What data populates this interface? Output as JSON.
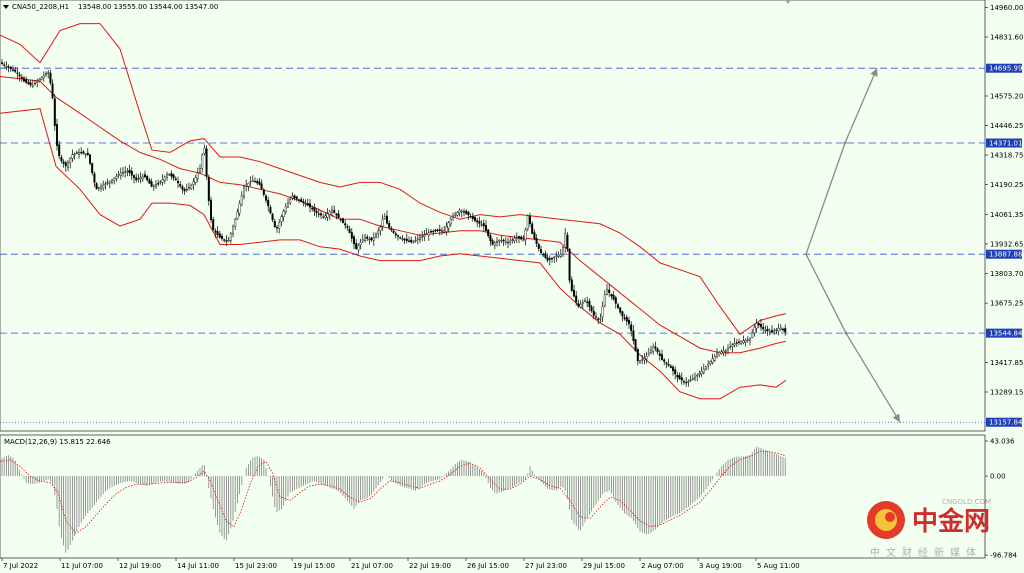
{
  "chart_data": {
    "type": "line",
    "header": {
      "symbol_info": "CNA50_2208,H1",
      "ohlc": "13548.00 13555.00 13544.00 13547.00"
    },
    "indicator_label": "MACD(12,26,9) 15.815 22.646",
    "y_ticks": [
      "14960.00",
      "14831.60",
      "14575.20",
      "14446.25",
      "14318.75",
      "14190.25",
      "14061.35",
      "13932.65",
      "13803.70",
      "13675.25",
      "13417.85",
      "13289.15"
    ],
    "levels": [
      {
        "label": "14695.99",
        "value": 14695.99,
        "style": "dashed"
      },
      {
        "label": "14371.01",
        "value": 14371.01,
        "style": "dashed"
      },
      {
        "label": "13887.88",
        "value": 13887.88,
        "style": "dashed"
      },
      {
        "label": "13544.84",
        "value": 13544.84,
        "style": "dashed"
      },
      {
        "label": "13157.84",
        "value": 13157.84,
        "style": "dotted"
      }
    ],
    "macd_ticks": [
      "43.036",
      "0.00",
      "-96.784"
    ],
    "x_ticks": [
      "7 Jul 2022",
      "11 Jul 07:00",
      "12 Jul 19:00",
      "14 Jul 11:00",
      "15 Jul 23:00",
      "19 Jul 15:00",
      "21 Jul 07:00",
      "22 Jul 19:00",
      "26 Jul 15:00",
      "27 Jul 23:00",
      "29 Jul 15:00",
      "2 Aug 07:00",
      "3 Aug 19:00",
      "5 Aug 11:00"
    ],
    "price_path": [
      [
        0,
        14720
      ],
      [
        8,
        14700
      ],
      [
        16,
        14680
      ],
      [
        24,
        14640
      ],
      [
        32,
        14620
      ],
      [
        40,
        14650
      ],
      [
        48,
        14680
      ],
      [
        52,
        14600
      ],
      [
        56,
        14380
      ],
      [
        60,
        14300
      ],
      [
        66,
        14270
      ],
      [
        72,
        14320
      ],
      [
        80,
        14330
      ],
      [
        88,
        14320
      ],
      [
        96,
        14170
      ],
      [
        104,
        14190
      ],
      [
        112,
        14210
      ],
      [
        120,
        14240
      ],
      [
        128,
        14250
      ],
      [
        136,
        14210
      ],
      [
        144,
        14230
      ],
      [
        152,
        14180
      ],
      [
        160,
        14200
      ],
      [
        168,
        14240
      ],
      [
        176,
        14210
      ],
      [
        184,
        14160
      ],
      [
        192,
        14190
      ],
      [
        200,
        14260
      ],
      [
        204,
        14370
      ],
      [
        208,
        14150
      ],
      [
        212,
        14000
      ],
      [
        220,
        13960
      ],
      [
        228,
        13940
      ],
      [
        236,
        14050
      ],
      [
        244,
        14180
      ],
      [
        252,
        14210
      ],
      [
        260,
        14190
      ],
      [
        268,
        14100
      ],
      [
        276,
        13990
      ],
      [
        284,
        14080
      ],
      [
        292,
        14140
      ],
      [
        300,
        14120
      ],
      [
        308,
        14100
      ],
      [
        316,
        14070
      ],
      [
        324,
        14050
      ],
      [
        332,
        14080
      ],
      [
        340,
        14040
      ],
      [
        348,
        14000
      ],
      [
        356,
        13910
      ],
      [
        364,
        13960
      ],
      [
        372,
        13950
      ],
      [
        380,
        14000
      ],
      [
        384,
        14060
      ],
      [
        388,
        14010
      ],
      [
        396,
        13970
      ],
      [
        404,
        13950
      ],
      [
        412,
        13940
      ],
      [
        420,
        13960
      ],
      [
        428,
        13980
      ],
      [
        436,
        13990
      ],
      [
        444,
        13990
      ],
      [
        452,
        14050
      ],
      [
        460,
        14080
      ],
      [
        468,
        14060
      ],
      [
        476,
        14030
      ],
      [
        484,
        14010
      ],
      [
        492,
        13930
      ],
      [
        500,
        13950
      ],
      [
        508,
        13940
      ],
      [
        516,
        13960
      ],
      [
        524,
        13950
      ],
      [
        528,
        14060
      ],
      [
        532,
        13980
      ],
      [
        540,
        13900
      ],
      [
        548,
        13860
      ],
      [
        556,
        13880
      ],
      [
        562,
        13890
      ],
      [
        566,
        14000
      ],
      [
        570,
        13750
      ],
      [
        578,
        13660
      ],
      [
        586,
        13690
      ],
      [
        594,
        13620
      ],
      [
        600,
        13600
      ],
      [
        606,
        13740
      ],
      [
        614,
        13690
      ],
      [
        622,
        13620
      ],
      [
        630,
        13580
      ],
      [
        638,
        13420
      ],
      [
        646,
        13440
      ],
      [
        654,
        13490
      ],
      [
        662,
        13430
      ],
      [
        670,
        13400
      ],
      [
        678,
        13350
      ],
      [
        686,
        13330
      ],
      [
        694,
        13350
      ],
      [
        702,
        13380
      ],
      [
        710,
        13420
      ],
      [
        718,
        13460
      ],
      [
        726,
        13470
      ],
      [
        734,
        13500
      ],
      [
        742,
        13510
      ],
      [
        750,
        13520
      ],
      [
        756,
        13590
      ],
      [
        764,
        13560
      ],
      [
        772,
        13550
      ],
      [
        780,
        13570
      ],
      [
        786,
        13547
      ]
    ],
    "bb_upper": [
      [
        0,
        14840
      ],
      [
        20,
        14800
      ],
      [
        40,
        14720
      ],
      [
        60,
        14860
      ],
      [
        80,
        14890
      ],
      [
        100,
        14890
      ],
      [
        120,
        14780
      ],
      [
        140,
        14500
      ],
      [
        152,
        14340
      ],
      [
        170,
        14330
      ],
      [
        190,
        14380
      ],
      [
        204,
        14390
      ],
      [
        220,
        14310
      ],
      [
        240,
        14310
      ],
      [
        260,
        14290
      ],
      [
        280,
        14260
      ],
      [
        300,
        14230
      ],
      [
        320,
        14200
      ],
      [
        340,
        14180
      ],
      [
        360,
        14200
      ],
      [
        380,
        14200
      ],
      [
        400,
        14170
      ],
      [
        420,
        14110
      ],
      [
        440,
        14070
      ],
      [
        460,
        14040
      ],
      [
        480,
        14060
      ],
      [
        500,
        14050
      ],
      [
        520,
        14060
      ],
      [
        540,
        14050
      ],
      [
        560,
        14040
      ],
      [
        580,
        14030
      ],
      [
        600,
        14020
      ],
      [
        620,
        13980
      ],
      [
        640,
        13920
      ],
      [
        660,
        13850
      ],
      [
        680,
        13820
      ],
      [
        700,
        13790
      ],
      [
        720,
        13660
      ],
      [
        740,
        13540
      ],
      [
        760,
        13600
      ],
      [
        776,
        13620
      ],
      [
        786,
        13630
      ]
    ],
    "bb_middle": [
      [
        0,
        14660
      ],
      [
        20,
        14650
      ],
      [
        40,
        14640
      ],
      [
        56,
        14570
      ],
      [
        80,
        14500
      ],
      [
        100,
        14440
      ],
      [
        120,
        14380
      ],
      [
        140,
        14330
      ],
      [
        160,
        14300
      ],
      [
        180,
        14260
      ],
      [
        200,
        14240
      ],
      [
        220,
        14200
      ],
      [
        240,
        14190
      ],
      [
        260,
        14170
      ],
      [
        280,
        14150
      ],
      [
        300,
        14120
      ],
      [
        320,
        14080
      ],
      [
        340,
        14040
      ],
      [
        360,
        14040
      ],
      [
        380,
        14010
      ],
      [
        400,
        13990
      ],
      [
        420,
        13970
      ],
      [
        440,
        13980
      ],
      [
        460,
        13990
      ],
      [
        480,
        13990
      ],
      [
        500,
        13970
      ],
      [
        520,
        13960
      ],
      [
        540,
        13950
      ],
      [
        560,
        13940
      ],
      [
        580,
        13860
      ],
      [
        600,
        13790
      ],
      [
        620,
        13720
      ],
      [
        640,
        13650
      ],
      [
        660,
        13580
      ],
      [
        680,
        13530
      ],
      [
        700,
        13480
      ],
      [
        720,
        13460
      ],
      [
        740,
        13460
      ],
      [
        760,
        13480
      ],
      [
        776,
        13500
      ],
      [
        786,
        13510
      ]
    ],
    "bb_lower": [
      [
        0,
        14500
      ],
      [
        20,
        14510
      ],
      [
        40,
        14520
      ],
      [
        56,
        14270
      ],
      [
        80,
        14170
      ],
      [
        100,
        14060
      ],
      [
        120,
        14010
      ],
      [
        140,
        14040
      ],
      [
        152,
        14110
      ],
      [
        170,
        14110
      ],
      [
        190,
        14100
      ],
      [
        204,
        14060
      ],
      [
        220,
        13930
      ],
      [
        240,
        13930
      ],
      [
        260,
        13940
      ],
      [
        280,
        13950
      ],
      [
        300,
        13950
      ],
      [
        320,
        13920
      ],
      [
        340,
        13910
      ],
      [
        360,
        13880
      ],
      [
        380,
        13860
      ],
      [
        400,
        13860
      ],
      [
        420,
        13860
      ],
      [
        440,
        13880
      ],
      [
        460,
        13890
      ],
      [
        480,
        13880
      ],
      [
        500,
        13870
      ],
      [
        520,
        13860
      ],
      [
        540,
        13850
      ],
      [
        560,
        13740
      ],
      [
        580,
        13660
      ],
      [
        600,
        13590
      ],
      [
        620,
        13540
      ],
      [
        640,
        13450
      ],
      [
        660,
        13380
      ],
      [
        680,
        13290
      ],
      [
        700,
        13260
      ],
      [
        720,
        13260
      ],
      [
        740,
        13310
      ],
      [
        760,
        13320
      ],
      [
        776,
        13310
      ],
      [
        786,
        13340
      ]
    ],
    "macd_hist": [
      [
        0,
        20
      ],
      [
        8,
        26
      ],
      [
        14,
        22
      ],
      [
        20,
        6
      ],
      [
        26,
        -8
      ],
      [
        32,
        -10
      ],
      [
        40,
        -8
      ],
      [
        48,
        -4
      ],
      [
        52,
        -8
      ],
      [
        56,
        -30
      ],
      [
        60,
        -70
      ],
      [
        66,
        -95
      ],
      [
        74,
        -75
      ],
      [
        82,
        -55
      ],
      [
        90,
        -42
      ],
      [
        98,
        -30
      ],
      [
        106,
        -18
      ],
      [
        114,
        -12
      ],
      [
        122,
        -8
      ],
      [
        130,
        -6
      ],
      [
        140,
        -10
      ],
      [
        148,
        -12
      ],
      [
        156,
        -8
      ],
      [
        164,
        -6
      ],
      [
        172,
        -8
      ],
      [
        180,
        -10
      ],
      [
        188,
        -8
      ],
      [
        196,
        4
      ],
      [
        204,
        16
      ],
      [
        208,
        -10
      ],
      [
        214,
        -45
      ],
      [
        220,
        -70
      ],
      [
        226,
        -80
      ],
      [
        232,
        -60
      ],
      [
        240,
        -20
      ],
      [
        246,
        10
      ],
      [
        252,
        22
      ],
      [
        258,
        25
      ],
      [
        264,
        20
      ],
      [
        270,
        -10
      ],
      [
        276,
        -45
      ],
      [
        282,
        -40
      ],
      [
        290,
        -20
      ],
      [
        298,
        -15
      ],
      [
        306,
        -10
      ],
      [
        314,
        -6
      ],
      [
        322,
        -10
      ],
      [
        330,
        -14
      ],
      [
        338,
        -18
      ],
      [
        346,
        -28
      ],
      [
        354,
        -40
      ],
      [
        360,
        -30
      ],
      [
        366,
        -28
      ],
      [
        372,
        -22
      ],
      [
        380,
        -8
      ],
      [
        386,
        2
      ],
      [
        392,
        -6
      ],
      [
        400,
        -12
      ],
      [
        408,
        -15
      ],
      [
        416,
        -18
      ],
      [
        424,
        -10
      ],
      [
        432,
        -6
      ],
      [
        440,
        -4
      ],
      [
        448,
        5
      ],
      [
        456,
        16
      ],
      [
        462,
        20
      ],
      [
        468,
        18
      ],
      [
        476,
        12
      ],
      [
        484,
        4
      ],
      [
        490,
        -14
      ],
      [
        496,
        -22
      ],
      [
        504,
        -18
      ],
      [
        512,
        -14
      ],
      [
        520,
        -8
      ],
      [
        526,
        -4
      ],
      [
        530,
        12
      ],
      [
        536,
        -2
      ],
      [
        542,
        -8
      ],
      [
        548,
        -16
      ],
      [
        556,
        -18
      ],
      [
        562,
        -12
      ],
      [
        566,
        -20
      ],
      [
        572,
        -55
      ],
      [
        580,
        -68
      ],
      [
        588,
        -50
      ],
      [
        596,
        -35
      ],
      [
        604,
        -20
      ],
      [
        610,
        -18
      ],
      [
        616,
        -32
      ],
      [
        624,
        -45
      ],
      [
        632,
        -52
      ],
      [
        640,
        -68
      ],
      [
        648,
        -72
      ],
      [
        656,
        -65
      ],
      [
        664,
        -55
      ],
      [
        672,
        -50
      ],
      [
        680,
        -45
      ],
      [
        688,
        -38
      ],
      [
        696,
        -30
      ],
      [
        704,
        -20
      ],
      [
        712,
        -5
      ],
      [
        720,
        10
      ],
      [
        728,
        20
      ],
      [
        736,
        24
      ],
      [
        744,
        24
      ],
      [
        750,
        26
      ],
      [
        756,
        36
      ],
      [
        762,
        34
      ],
      [
        770,
        30
      ],
      [
        778,
        26
      ],
      [
        786,
        22
      ]
    ],
    "macd_signal": [
      [
        0,
        18
      ],
      [
        10,
        20
      ],
      [
        20,
        12
      ],
      [
        30,
        0
      ],
      [
        40,
        -6
      ],
      [
        50,
        -8
      ],
      [
        58,
        -20
      ],
      [
        66,
        -55
      ],
      [
        76,
        -70
      ],
      [
        86,
        -62
      ],
      [
        96,
        -48
      ],
      [
        106,
        -34
      ],
      [
        116,
        -22
      ],
      [
        126,
        -14
      ],
      [
        136,
        -10
      ],
      [
        146,
        -10
      ],
      [
        156,
        -9
      ],
      [
        166,
        -8
      ],
      [
        176,
        -8
      ],
      [
        186,
        -8
      ],
      [
        196,
        -2
      ],
      [
        204,
        6
      ],
      [
        210,
        -5
      ],
      [
        218,
        -30
      ],
      [
        226,
        -55
      ],
      [
        234,
        -62
      ],
      [
        242,
        -40
      ],
      [
        250,
        -10
      ],
      [
        258,
        12
      ],
      [
        266,
        18
      ],
      [
        272,
        5
      ],
      [
        280,
        -25
      ],
      [
        290,
        -30
      ],
      [
        300,
        -20
      ],
      [
        310,
        -12
      ],
      [
        320,
        -10
      ],
      [
        330,
        -12
      ],
      [
        340,
        -16
      ],
      [
        350,
        -26
      ],
      [
        360,
        -32
      ],
      [
        370,
        -28
      ],
      [
        380,
        -16
      ],
      [
        390,
        -6
      ],
      [
        400,
        -8
      ],
      [
        410,
        -12
      ],
      [
        420,
        -15
      ],
      [
        430,
        -10
      ],
      [
        440,
        -6
      ],
      [
        450,
        2
      ],
      [
        460,
        12
      ],
      [
        470,
        16
      ],
      [
        480,
        10
      ],
      [
        490,
        -4
      ],
      [
        500,
        -16
      ],
      [
        510,
        -16
      ],
      [
        520,
        -10
      ],
      [
        530,
        0
      ],
      [
        540,
        -4
      ],
      [
        550,
        -12
      ],
      [
        560,
        -15
      ],
      [
        570,
        -30
      ],
      [
        580,
        -50
      ],
      [
        590,
        -52
      ],
      [
        600,
        -38
      ],
      [
        610,
        -26
      ],
      [
        620,
        -30
      ],
      [
        630,
        -42
      ],
      [
        640,
        -55
      ],
      [
        650,
        -62
      ],
      [
        660,
        -60
      ],
      [
        670,
        -54
      ],
      [
        680,
        -48
      ],
      [
        690,
        -40
      ],
      [
        700,
        -32
      ],
      [
        710,
        -18
      ],
      [
        720,
        -2
      ],
      [
        730,
        12
      ],
      [
        740,
        20
      ],
      [
        750,
        24
      ],
      [
        760,
        30
      ],
      [
        770,
        30
      ],
      [
        780,
        27
      ],
      [
        786,
        25
      ]
    ]
  }
}
